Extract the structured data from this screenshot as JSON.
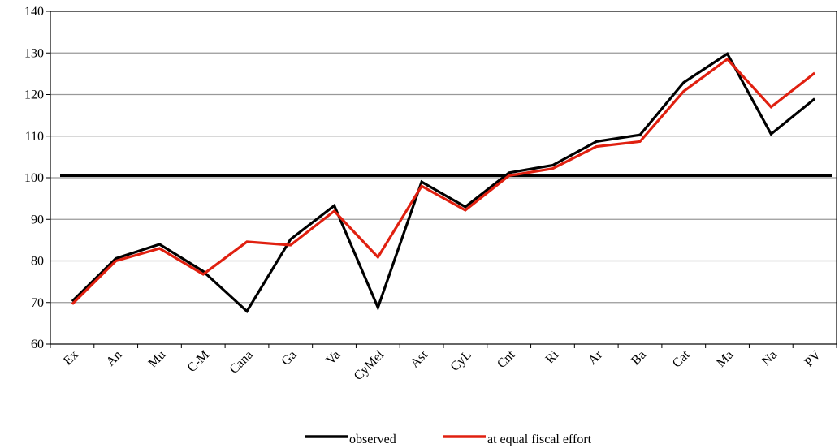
{
  "chart_data": {
    "type": "line",
    "categories": [
      "Ex",
      "An",
      "Mu",
      "C-M",
      "Cana",
      "Ga",
      "Va",
      "CyMel",
      "Ast",
      "CyL",
      "Cnt",
      "Ri",
      "Ar",
      "Ba",
      "Cat",
      "Ma",
      "Na",
      "PV"
    ],
    "series": [
      {
        "name": "observed",
        "color": "#000000",
        "values": [
          70.3,
          80.6,
          84.0,
          77.5,
          67.9,
          85.2,
          93.3,
          68.8,
          99.0,
          93.0,
          101.2,
          103.0,
          108.7,
          110.3,
          122.9,
          129.8,
          110.5,
          119.0
        ]
      },
      {
        "name": "at equal fiscal effort",
        "color": "#e02010",
        "values": [
          69.6,
          80.0,
          83.0,
          76.8,
          84.6,
          83.8,
          92.0,
          80.9,
          98.0,
          92.2,
          100.5,
          102.2,
          107.5,
          108.7,
          120.8,
          128.5,
          117.0,
          125.2
        ]
      }
    ],
    "reference_line": 100.5,
    "yticks": [
      "60",
      "70",
      "80",
      "90",
      "100",
      "110",
      "120",
      "130",
      "140"
    ],
    "ylim": [
      60,
      140
    ],
    "grid": true,
    "legend_position": "bottom-center"
  }
}
